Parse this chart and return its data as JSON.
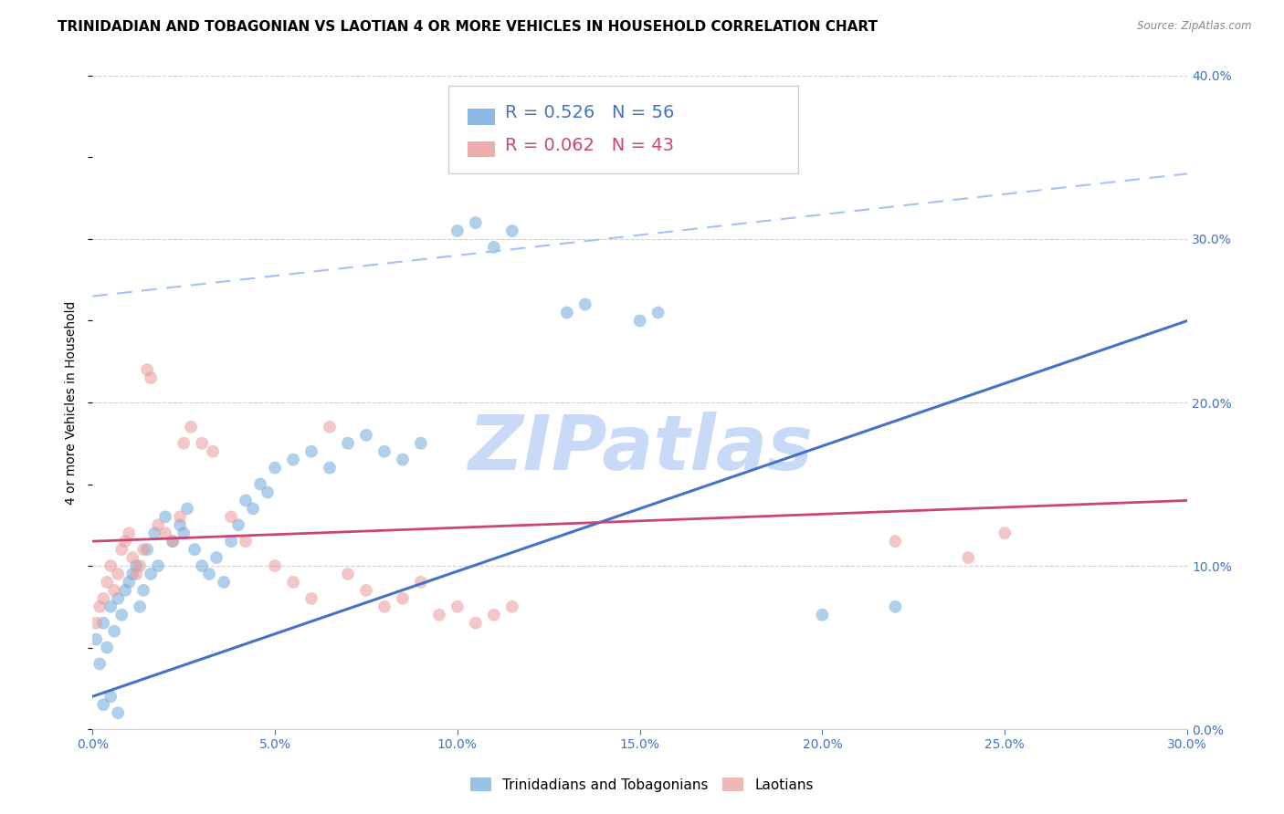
{
  "title": "TRINIDADIAN AND TOBAGONIAN VS LAOTIAN 4 OR MORE VEHICLES IN HOUSEHOLD CORRELATION CHART",
  "source": "Source: ZipAtlas.com",
  "ylabel": "4 or more Vehicles in Household",
  "xlim": [
    0.0,
    0.3
  ],
  "ylim": [
    0.0,
    0.4
  ],
  "x_tick_labels": [
    "0.0%",
    "5.0%",
    "10.0%",
    "15.0%",
    "20.0%",
    "25.0%",
    "30.0%"
  ],
  "y_tick_labels_right": [
    "0.0%",
    "10.0%",
    "20.0%",
    "30.0%",
    "40.0%"
  ],
  "y_tick_vals_right": [
    0.0,
    0.1,
    0.2,
    0.3,
    0.4
  ],
  "x_tick_vals": [
    0.0,
    0.05,
    0.1,
    0.15,
    0.2,
    0.25,
    0.3
  ],
  "background_color": "#ffffff",
  "grid_color": "#d0d0d0",
  "watermark": "ZIPatlas",
  "blue_color": "#6fa8dc",
  "pink_color": "#ea9999",
  "legend_blue_R": "R = 0.526",
  "legend_blue_N": "N = 56",
  "legend_pink_R": "R = 0.062",
  "legend_pink_N": "N = 43",
  "blue_scatter_x": [
    0.001,
    0.002,
    0.003,
    0.004,
    0.005,
    0.006,
    0.007,
    0.008,
    0.009,
    0.01,
    0.011,
    0.012,
    0.013,
    0.014,
    0.015,
    0.016,
    0.017,
    0.018,
    0.02,
    0.022,
    0.024,
    0.025,
    0.026,
    0.028,
    0.03,
    0.032,
    0.034,
    0.036,
    0.038,
    0.04,
    0.042,
    0.044,
    0.046,
    0.048,
    0.05,
    0.055,
    0.06,
    0.065,
    0.07,
    0.075,
    0.08,
    0.085,
    0.09,
    0.1,
    0.105,
    0.11,
    0.115,
    0.13,
    0.135,
    0.15,
    0.155,
    0.2,
    0.22,
    0.003,
    0.005,
    0.007
  ],
  "blue_scatter_y": [
    0.055,
    0.04,
    0.065,
    0.05,
    0.075,
    0.06,
    0.08,
    0.07,
    0.085,
    0.09,
    0.095,
    0.1,
    0.075,
    0.085,
    0.11,
    0.095,
    0.12,
    0.1,
    0.13,
    0.115,
    0.125,
    0.12,
    0.135,
    0.11,
    0.1,
    0.095,
    0.105,
    0.09,
    0.115,
    0.125,
    0.14,
    0.135,
    0.15,
    0.145,
    0.16,
    0.165,
    0.17,
    0.16,
    0.175,
    0.18,
    0.17,
    0.165,
    0.175,
    0.305,
    0.31,
    0.295,
    0.305,
    0.255,
    0.26,
    0.25,
    0.255,
    0.07,
    0.075,
    0.015,
    0.02,
    0.01
  ],
  "pink_scatter_x": [
    0.001,
    0.002,
    0.003,
    0.004,
    0.005,
    0.006,
    0.007,
    0.008,
    0.009,
    0.01,
    0.011,
    0.012,
    0.013,
    0.014,
    0.015,
    0.016,
    0.018,
    0.02,
    0.022,
    0.024,
    0.025,
    0.027,
    0.03,
    0.033,
    0.038,
    0.042,
    0.05,
    0.055,
    0.06,
    0.065,
    0.07,
    0.075,
    0.08,
    0.085,
    0.09,
    0.095,
    0.1,
    0.105,
    0.11,
    0.115,
    0.22,
    0.24,
    0.25
  ],
  "pink_scatter_y": [
    0.065,
    0.075,
    0.08,
    0.09,
    0.1,
    0.085,
    0.095,
    0.11,
    0.115,
    0.12,
    0.105,
    0.095,
    0.1,
    0.11,
    0.22,
    0.215,
    0.125,
    0.12,
    0.115,
    0.13,
    0.175,
    0.185,
    0.175,
    0.17,
    0.13,
    0.115,
    0.1,
    0.09,
    0.08,
    0.185,
    0.095,
    0.085,
    0.075,
    0.08,
    0.09,
    0.07,
    0.075,
    0.065,
    0.07,
    0.075,
    0.115,
    0.105,
    0.12
  ],
  "blue_line_x": [
    0.0,
    0.3
  ],
  "blue_line_y": [
    0.02,
    0.25
  ],
  "pink_line_x": [
    0.0,
    0.3
  ],
  "pink_line_y": [
    0.115,
    0.14
  ],
  "dashed_line_x": [
    0.0,
    0.3
  ],
  "dashed_line_y": [
    0.265,
    0.34
  ],
  "title_fontsize": 11,
  "axis_label_fontsize": 10,
  "tick_fontsize": 10,
  "legend_fontsize": 14,
  "right_tick_color": "#4472c4",
  "bottom_tick_color": "#4472c4",
  "watermark_color": "#c9daf8",
  "watermark_fontsize": 60,
  "marker_size": 100,
  "legend_label_blue": "Trinidadians and Tobagonians",
  "legend_label_pink": "Laotians"
}
